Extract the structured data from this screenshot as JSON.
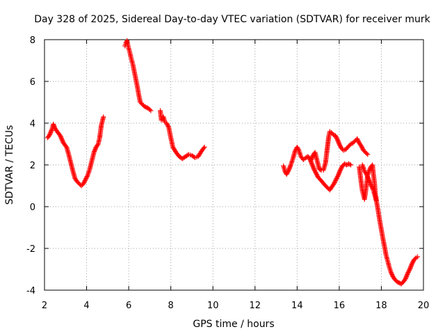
{
  "chart_data": {
    "type": "scatter",
    "title": "Day 328 of 2025, Sidereal Day-to-day VTEC variation (SDTVAR) for receiver murk",
    "xlabel": "GPS time / hours",
    "ylabel": "SDTVAR / TECUs",
    "xlim": [
      2,
      20
    ],
    "ylim": [
      -4,
      8
    ],
    "xticks": [
      2,
      4,
      6,
      8,
      10,
      12,
      14,
      16,
      18,
      20
    ],
    "yticks": [
      -4,
      -2,
      0,
      2,
      4,
      6,
      8
    ],
    "xtick_labels": [
      "2",
      "4",
      "6",
      "8",
      "10",
      "12",
      "14",
      "16",
      "18",
      "20"
    ],
    "ytick_labels": [
      "-4",
      "-2",
      "0",
      "2",
      "4",
      "6",
      "8"
    ],
    "grid": true,
    "marker": "+",
    "color": "#ff0000",
    "series": [
      {
        "segments": [
          [
            [
              2.15,
              3.3
            ],
            [
              2.25,
              3.45
            ],
            [
              2.35,
              3.7
            ],
            [
              2.42,
              3.95
            ],
            [
              2.5,
              3.75
            ],
            [
              2.6,
              3.6
            ],
            [
              2.75,
              3.4
            ],
            [
              2.9,
              3.05
            ],
            [
              3.05,
              2.85
            ],
            [
              3.15,
              2.5
            ],
            [
              3.25,
              2.1
            ],
            [
              3.35,
              1.7
            ],
            [
              3.45,
              1.35
            ],
            [
              3.55,
              1.2
            ],
            [
              3.65,
              1.1
            ],
            [
              3.75,
              1.0
            ],
            [
              3.85,
              1.1
            ],
            [
              3.95,
              1.3
            ],
            [
              4.05,
              1.5
            ],
            [
              4.15,
              1.8
            ],
            [
              4.25,
              2.2
            ],
            [
              4.35,
              2.6
            ],
            [
              4.45,
              2.85
            ],
            [
              4.55,
              3.0
            ],
            [
              4.62,
              3.3
            ],
            [
              4.7,
              3.9
            ],
            [
              4.8,
              4.3
            ]
          ],
          [
            [
              5.82,
              7.7
            ],
            [
              5.87,
              7.85
            ],
            [
              5.92,
              7.95
            ],
            [
              5.97,
              7.7
            ],
            [
              6.05,
              7.4
            ],
            [
              6.12,
              7.1
            ],
            [
              6.2,
              6.8
            ],
            [
              6.3,
              6.3
            ],
            [
              6.4,
              5.8
            ],
            [
              6.48,
              5.35
            ],
            [
              6.55,
              5.0
            ],
            [
              6.65,
              4.9
            ],
            [
              6.75,
              4.8
            ],
            [
              6.85,
              4.75
            ],
            [
              6.95,
              4.7
            ],
            [
              7.05,
              4.6
            ]
          ],
          [
            [
              7.5,
              4.6
            ],
            [
              7.55,
              4.15
            ],
            [
              7.6,
              4.2
            ],
            [
              7.65,
              4.3
            ],
            [
              7.72,
              4.05
            ],
            [
              7.8,
              4.0
            ],
            [
              7.9,
              3.8
            ],
            [
              8.0,
              3.3
            ],
            [
              8.1,
              2.85
            ],
            [
              8.25,
              2.6
            ],
            [
              8.4,
              2.4
            ],
            [
              8.55,
              2.3
            ],
            [
              8.7,
              2.4
            ],
            [
              8.85,
              2.5
            ],
            [
              9.0,
              2.45
            ],
            [
              9.15,
              2.35
            ],
            [
              9.3,
              2.4
            ],
            [
              9.42,
              2.6
            ],
            [
              9.52,
              2.75
            ],
            [
              9.6,
              2.85
            ]
          ],
          [
            [
              13.35,
              1.95
            ],
            [
              13.42,
              1.7
            ],
            [
              13.5,
              1.55
            ],
            [
              13.6,
              1.75
            ],
            [
              13.7,
              2.0
            ],
            [
              13.8,
              2.3
            ],
            [
              13.9,
              2.65
            ],
            [
              14.0,
              2.85
            ],
            [
              14.08,
              2.7
            ],
            [
              14.18,
              2.4
            ],
            [
              14.3,
              2.25
            ],
            [
              14.42,
              2.35
            ],
            [
              14.52,
              2.4
            ],
            [
              14.6,
              2.3
            ],
            [
              14.7,
              2.05
            ],
            [
              14.8,
              1.8
            ],
            [
              14.9,
              1.6
            ],
            [
              15.0,
              1.4
            ],
            [
              15.1,
              1.3
            ],
            [
              15.22,
              1.15
            ],
            [
              15.35,
              1.0
            ],
            [
              15.45,
              0.9
            ],
            [
              15.55,
              0.8
            ],
            [
              15.65,
              0.95
            ],
            [
              15.75,
              1.1
            ],
            [
              15.85,
              1.3
            ],
            [
              15.95,
              1.5
            ],
            [
              16.05,
              1.75
            ],
            [
              16.15,
              1.95
            ],
            [
              16.25,
              2.05
            ],
            [
              16.35,
              2.0
            ],
            [
              16.45,
              2.05
            ],
            [
              16.55,
              2.0
            ]
          ],
          [
            [
              14.65,
              2.2
            ],
            [
              14.75,
              2.45
            ],
            [
              14.85,
              2.6
            ],
            [
              14.95,
              2.2
            ],
            [
              15.05,
              1.8
            ],
            [
              15.15,
              1.75
            ],
            [
              15.25,
              1.75
            ],
            [
              15.35,
              2.1
            ],
            [
              15.42,
              2.7
            ],
            [
              15.5,
              3.35
            ],
            [
              15.55,
              3.6
            ],
            [
              15.62,
              3.55
            ],
            [
              15.72,
              3.45
            ],
            [
              15.82,
              3.4
            ],
            [
              15.92,
              3.2
            ],
            [
              16.0,
              3.0
            ],
            [
              16.1,
              2.8
            ],
            [
              16.2,
              2.7
            ],
            [
              16.32,
              2.75
            ],
            [
              16.45,
              2.9
            ],
            [
              16.55,
              3.0
            ],
            [
              16.65,
              3.05
            ],
            [
              16.75,
              3.15
            ],
            [
              16.85,
              3.25
            ],
            [
              16.95,
              3.05
            ],
            [
              17.05,
              2.9
            ],
            [
              17.15,
              2.7
            ],
            [
              17.25,
              2.6
            ],
            [
              17.35,
              2.5
            ]
          ],
          [
            [
              16.95,
              1.9
            ],
            [
              17.0,
              1.5
            ],
            [
              17.05,
              1.1
            ],
            [
              17.1,
              0.75
            ],
            [
              17.15,
              0.55
            ],
            [
              17.2,
              0.35
            ],
            [
              17.25,
              0.7
            ],
            [
              17.3,
              1.1
            ],
            [
              17.35,
              1.5
            ],
            [
              17.42,
              1.7
            ],
            [
              17.5,
              1.9
            ],
            [
              17.58,
              2.0
            ],
            [
              17.62,
              1.6
            ],
            [
              17.68,
              1.1
            ],
            [
              17.72,
              0.6
            ],
            [
              17.77,
              0.3
            ]
          ],
          [
            [
              17.1,
              2.0
            ],
            [
              17.2,
              1.7
            ],
            [
              17.3,
              1.55
            ],
            [
              17.4,
              1.3
            ],
            [
              17.48,
              1.1
            ],
            [
              17.55,
              0.95
            ],
            [
              17.62,
              0.8
            ],
            [
              17.7,
              0.5
            ],
            [
              17.78,
              0.2
            ],
            [
              17.85,
              -0.2
            ],
            [
              17.92,
              -0.65
            ],
            [
              18.0,
              -1.1
            ],
            [
              18.08,
              -1.55
            ],
            [
              18.15,
              -1.9
            ],
            [
              18.22,
              -2.3
            ],
            [
              18.3,
              -2.6
            ],
            [
              18.38,
              -2.9
            ],
            [
              18.46,
              -3.15
            ],
            [
              18.55,
              -3.35
            ],
            [
              18.65,
              -3.5
            ],
            [
              18.75,
              -3.6
            ],
            [
              18.85,
              -3.65
            ],
            [
              18.95,
              -3.7
            ],
            [
              19.05,
              -3.6
            ],
            [
              19.15,
              -3.45
            ],
            [
              19.25,
              -3.2
            ],
            [
              19.35,
              -3.0
            ],
            [
              19.45,
              -2.75
            ],
            [
              19.55,
              -2.55
            ],
            [
              19.65,
              -2.45
            ],
            [
              19.72,
              -2.4
            ]
          ]
        ]
      }
    ]
  }
}
